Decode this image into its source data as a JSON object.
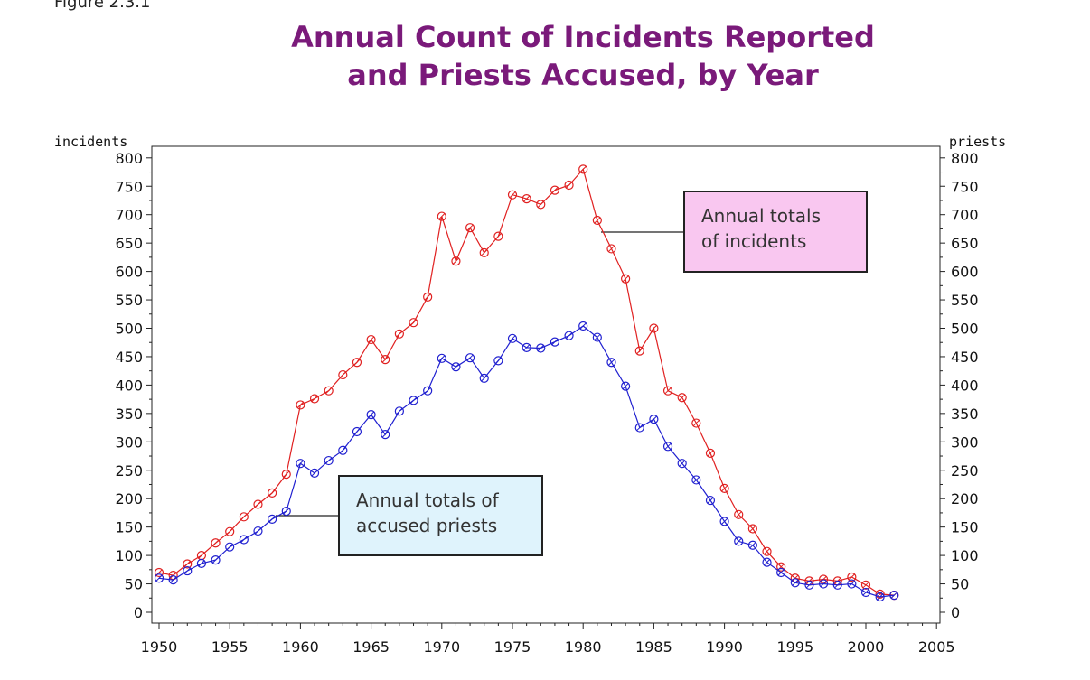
{
  "figure_label": "Figure 2.3.1",
  "title_line1": "Annual Count of Incidents Reported",
  "title_line2": "and Priests Accused, by Year",
  "annotations": {
    "incidents_line1": "Annual totals",
    "incidents_line2": "of incidents",
    "priests_line1": "Annual totals of",
    "priests_line2": "accused priests"
  },
  "colors": {
    "title": "#7a1a7a",
    "incidents": "#e02020",
    "priests": "#2020d0"
  },
  "chart_data": {
    "type": "line",
    "title": "Annual Count of Incidents Reported and Priests Accused, by Year",
    "ylabel_left": "incidents",
    "ylabel_right": "priests",
    "xlim": [
      1950,
      2005
    ],
    "ylim": [
      0,
      800
    ],
    "x_ticks": [
      1950,
      1955,
      1960,
      1965,
      1970,
      1975,
      1980,
      1985,
      1990,
      1995,
      2000,
      2005
    ],
    "y_ticks": [
      0,
      50,
      100,
      150,
      200,
      250,
      300,
      350,
      400,
      450,
      500,
      550,
      600,
      650,
      700,
      750,
      800
    ],
    "x": [
      1950,
      1951,
      1952,
      1953,
      1954,
      1955,
      1956,
      1957,
      1958,
      1959,
      1960,
      1961,
      1962,
      1963,
      1964,
      1965,
      1966,
      1967,
      1968,
      1969,
      1970,
      1971,
      1972,
      1973,
      1974,
      1975,
      1976,
      1977,
      1978,
      1979,
      1980,
      1981,
      1982,
      1983,
      1984,
      1985,
      1986,
      1987,
      1988,
      1989,
      1990,
      1991,
      1992,
      1993,
      1994,
      1995,
      1996,
      1997,
      1998,
      1999,
      2000,
      2001,
      2002
    ],
    "series": [
      {
        "name": "Annual totals of incidents",
        "values": [
          70,
          65,
          85,
          100,
          122,
          142,
          168,
          190,
          210,
          243,
          365,
          376,
          390,
          418,
          440,
          480,
          445,
          490,
          510,
          555,
          697,
          618,
          677,
          633,
          662,
          735,
          728,
          718,
          743,
          752,
          780,
          690,
          640,
          587,
          460,
          500,
          390,
          378,
          333,
          280,
          218,
          172,
          147,
          107,
          80,
          60,
          55,
          58,
          55,
          62,
          48,
          32,
          30
        ]
      },
      {
        "name": "Annual totals of accused priests",
        "values": [
          60,
          57,
          73,
          86,
          92,
          115,
          128,
          143,
          164,
          178,
          262,
          245,
          267,
          285,
          318,
          348,
          313,
          354,
          373,
          390,
          447,
          432,
          448,
          412,
          443,
          482,
          466,
          465,
          476,
          487,
          504,
          484,
          440,
          398,
          325,
          340,
          292,
          262,
          233,
          197,
          160,
          125,
          118,
          88,
          70,
          52,
          48,
          50,
          48,
          50,
          35,
          27,
          30
        ]
      }
    ]
  }
}
